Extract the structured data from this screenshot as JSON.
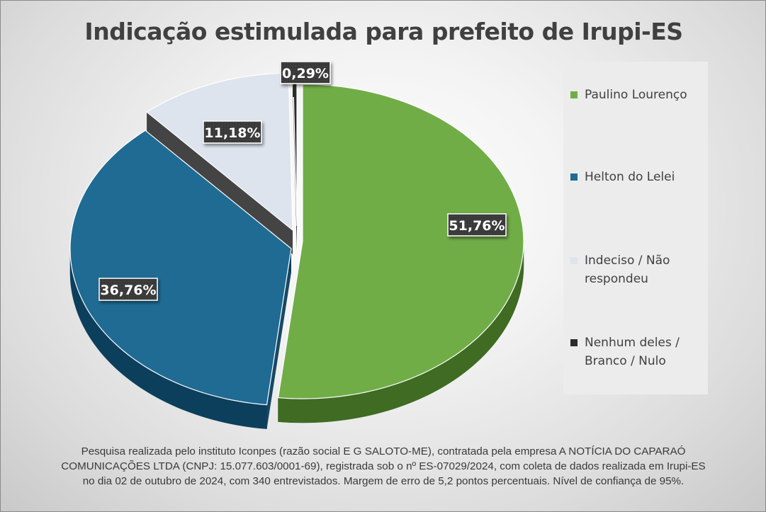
{
  "chart_data": {
    "type": "pie",
    "title": "Indicação estimulada para prefeito de Irupi-ES",
    "slices": [
      {
        "name": "Paulino Lourenço",
        "value": 51.76,
        "label": "51,76%",
        "color": "#70ad47",
        "side": "#3f6b23"
      },
      {
        "name": "Helton do Lelei",
        "value": 36.76,
        "label": "36,76%",
        "color": "#1f6b94",
        "side": "#0c3f5c"
      },
      {
        "name": "Indeciso / Não respondeu",
        "value": 11.18,
        "label": "11,18%",
        "color": "#dde4ee",
        "side": "#3a3a3a"
      },
      {
        "name": "Nenhum deles / Branco / Nulo",
        "value": 0.29,
        "label": "0,29%",
        "color": "#2b2b2b",
        "side": "#151515"
      }
    ],
    "legend_position": "right",
    "style": "3d exploded"
  },
  "legend": {
    "items": [
      {
        "label": "Paulino Lourenço",
        "color": "#70ad47"
      },
      {
        "label": "Helton do Lelei",
        "color": "#1f6b94"
      },
      {
        "label": "Indeciso / Não respondeu",
        "color": "#dde4ee"
      },
      {
        "label": "Nenhum deles / Branco / Nulo",
        "color": "#2b2b2b"
      }
    ]
  },
  "footnote": {
    "line1": "Pesquisa realizada pelo instituto Iconpes (razão social E G SALOTO-ME), contratada pela empresa A NOTÍCIA DO CAPARAÓ",
    "line2": "COMUNICAÇÕES LTDA (CNPJ: 15.077.603/0001-69), registrada sob o nº ES-07029/2024, com coleta de dados realizada em Irupi-ES",
    "line3": "no dia 02 de outubro de 2024, com 340 entrevistados. Margem de erro de 5,2 pontos percentuais. Nível de confiança de 95%."
  }
}
